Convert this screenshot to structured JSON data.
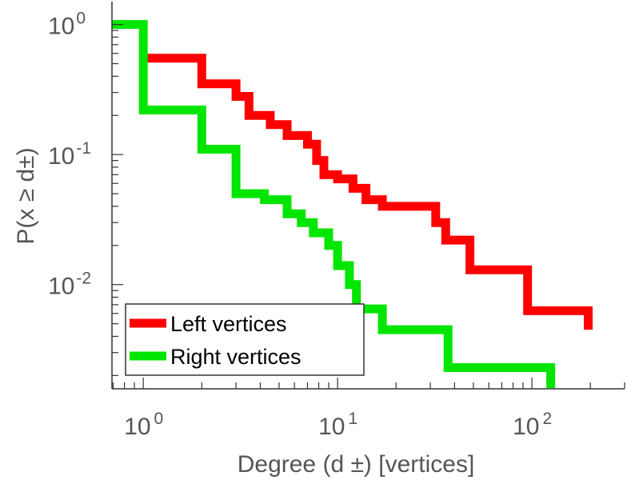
{
  "chart_data": {
    "type": "line",
    "step": true,
    "xscale": "log",
    "yscale": "log",
    "xlim": [
      0.69,
      300
    ],
    "ylim": [
      0.00158,
      1.5
    ],
    "xlabel": "Degree (d ±) [vertices]",
    "ylabel": "P(x ≥ d±)",
    "xticks": [
      1,
      10,
      100
    ],
    "yticks": [
      0.01,
      0.1,
      1
    ],
    "x_tick_labels": [
      {
        "base": "10",
        "exp": "0"
      },
      {
        "base": "10",
        "exp": "1"
      },
      {
        "base": "10",
        "exp": "2"
      }
    ],
    "y_tick_labels": [
      {
        "base": "10",
        "exp": "-2"
      },
      {
        "base": "10",
        "exp": "-1"
      },
      {
        "base": "10",
        "exp": "0"
      }
    ],
    "grid": false,
    "legend_position": "bottom-left",
    "series": [
      {
        "name": "Left vertices",
        "color": "#ff0000",
        "points": [
          [
            1.0,
            0.55
          ],
          [
            2.0,
            0.55
          ],
          [
            2.0,
            0.35
          ],
          [
            3.0,
            0.35
          ],
          [
            3.0,
            0.28
          ],
          [
            3.5,
            0.28
          ],
          [
            3.5,
            0.2
          ],
          [
            4.5,
            0.2
          ],
          [
            4.5,
            0.17
          ],
          [
            5.5,
            0.17
          ],
          [
            5.5,
            0.14
          ],
          [
            7.0,
            0.14
          ],
          [
            7.0,
            0.12
          ],
          [
            7.8,
            0.12
          ],
          [
            7.8,
            0.09
          ],
          [
            8.5,
            0.09
          ],
          [
            8.5,
            0.07
          ],
          [
            10.0,
            0.07
          ],
          [
            10.0,
            0.065
          ],
          [
            12.0,
            0.065
          ],
          [
            12.0,
            0.055
          ],
          [
            14.0,
            0.055
          ],
          [
            14.0,
            0.045
          ],
          [
            17.0,
            0.045
          ],
          [
            17.0,
            0.04
          ],
          [
            32.0,
            0.04
          ],
          [
            32.0,
            0.03
          ],
          [
            36.0,
            0.03
          ],
          [
            36.0,
            0.022
          ],
          [
            48.0,
            0.022
          ],
          [
            48.0,
            0.013
          ],
          [
            95.0,
            0.013
          ],
          [
            95.0,
            0.0063
          ],
          [
            195.0,
            0.0063
          ],
          [
            195.0,
            0.0045
          ]
        ]
      },
      {
        "name": "Right vertices",
        "color": "#00e600",
        "points": [
          [
            0.69,
            1.0
          ],
          [
            1.0,
            1.0
          ],
          [
            1.0,
            0.22
          ],
          [
            2.0,
            0.22
          ],
          [
            2.0,
            0.11
          ],
          [
            3.0,
            0.11
          ],
          [
            3.0,
            0.05
          ],
          [
            4.2,
            0.05
          ],
          [
            4.2,
            0.045
          ],
          [
            5.5,
            0.045
          ],
          [
            5.5,
            0.035
          ],
          [
            6.5,
            0.035
          ],
          [
            6.5,
            0.03
          ],
          [
            7.5,
            0.03
          ],
          [
            7.5,
            0.025
          ],
          [
            9.0,
            0.025
          ],
          [
            9.0,
            0.02
          ],
          [
            10.0,
            0.02
          ],
          [
            10.0,
            0.014
          ],
          [
            11.5,
            0.014
          ],
          [
            11.5,
            0.01
          ],
          [
            12.5,
            0.01
          ],
          [
            12.5,
            0.0065
          ],
          [
            17.0,
            0.0065
          ],
          [
            17.0,
            0.0045
          ],
          [
            37.0,
            0.0045
          ],
          [
            37.0,
            0.0023
          ],
          [
            125.0,
            0.0023
          ],
          [
            125.0,
            0.0016
          ]
        ]
      }
    ]
  }
}
